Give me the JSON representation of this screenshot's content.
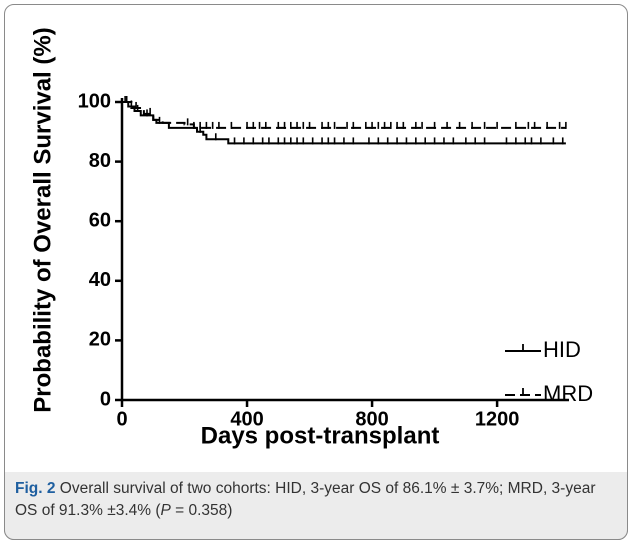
{
  "chart_data": {
    "type": "step",
    "xlabel": "Days post-transplant",
    "ylabel": "Probability of Overall Survival (%)",
    "xlim": [
      0,
      1430
    ],
    "ylim": [
      0,
      100
    ],
    "xticks": [
      0,
      400,
      800,
      1200
    ],
    "yticks": [
      0,
      20,
      40,
      60,
      80,
      100
    ],
    "legend": "lower right",
    "series": [
      {
        "name": "HID",
        "color": "#000000",
        "dash": false,
        "x": [
          0,
          20,
          40,
          60,
          100,
          110,
          150,
          240,
          260,
          270,
          340,
          1420
        ],
        "values": [
          100,
          98.5,
          97,
          95.5,
          94,
          93,
          91.3,
          90,
          89,
          87.5,
          86.1,
          86.1
        ],
        "censored": [
          10,
          30,
          50,
          80,
          120,
          230,
          250,
          300,
          360,
          390,
          420,
          450,
          470,
          500,
          520,
          540,
          560,
          580,
          610,
          640,
          660,
          680,
          710,
          740,
          790,
          820,
          850,
          880,
          910,
          940,
          970,
          1000,
          1030,
          1060,
          1100,
          1130,
          1160,
          1230,
          1260,
          1290,
          1310,
          1340,
          1380,
          1410
        ]
      },
      {
        "name": "MRD",
        "color": "#000000",
        "dash": true,
        "x": [
          0,
          30,
          70,
          100,
          130,
          200,
          230,
          1420
        ],
        "values": [
          100,
          98,
          96,
          94,
          93,
          92.5,
          91.3,
          91.3
        ],
        "censored": [
          15,
          45,
          90,
          210,
          250,
          270,
          290,
          310,
          350,
          400,
          420,
          440,
          460,
          500,
          520,
          540,
          560,
          580,
          600,
          640,
          660,
          680,
          720,
          740,
          780,
          800,
          820,
          840,
          860,
          880,
          900,
          940,
          960,
          1000,
          1040,
          1080,
          1120,
          1160,
          1200,
          1260,
          1300,
          1320,
          1360,
          1400,
          1420
        ]
      }
    ]
  },
  "caption": {
    "label": "Fig. 2",
    "text": "Overall survival of two cohorts: HID, 3-year OS of 86.1% ± 3.7%; MRD, 3-year OS of 91.3% ±3.4% (",
    "p": "P",
    "tail": " = 0.358)"
  }
}
